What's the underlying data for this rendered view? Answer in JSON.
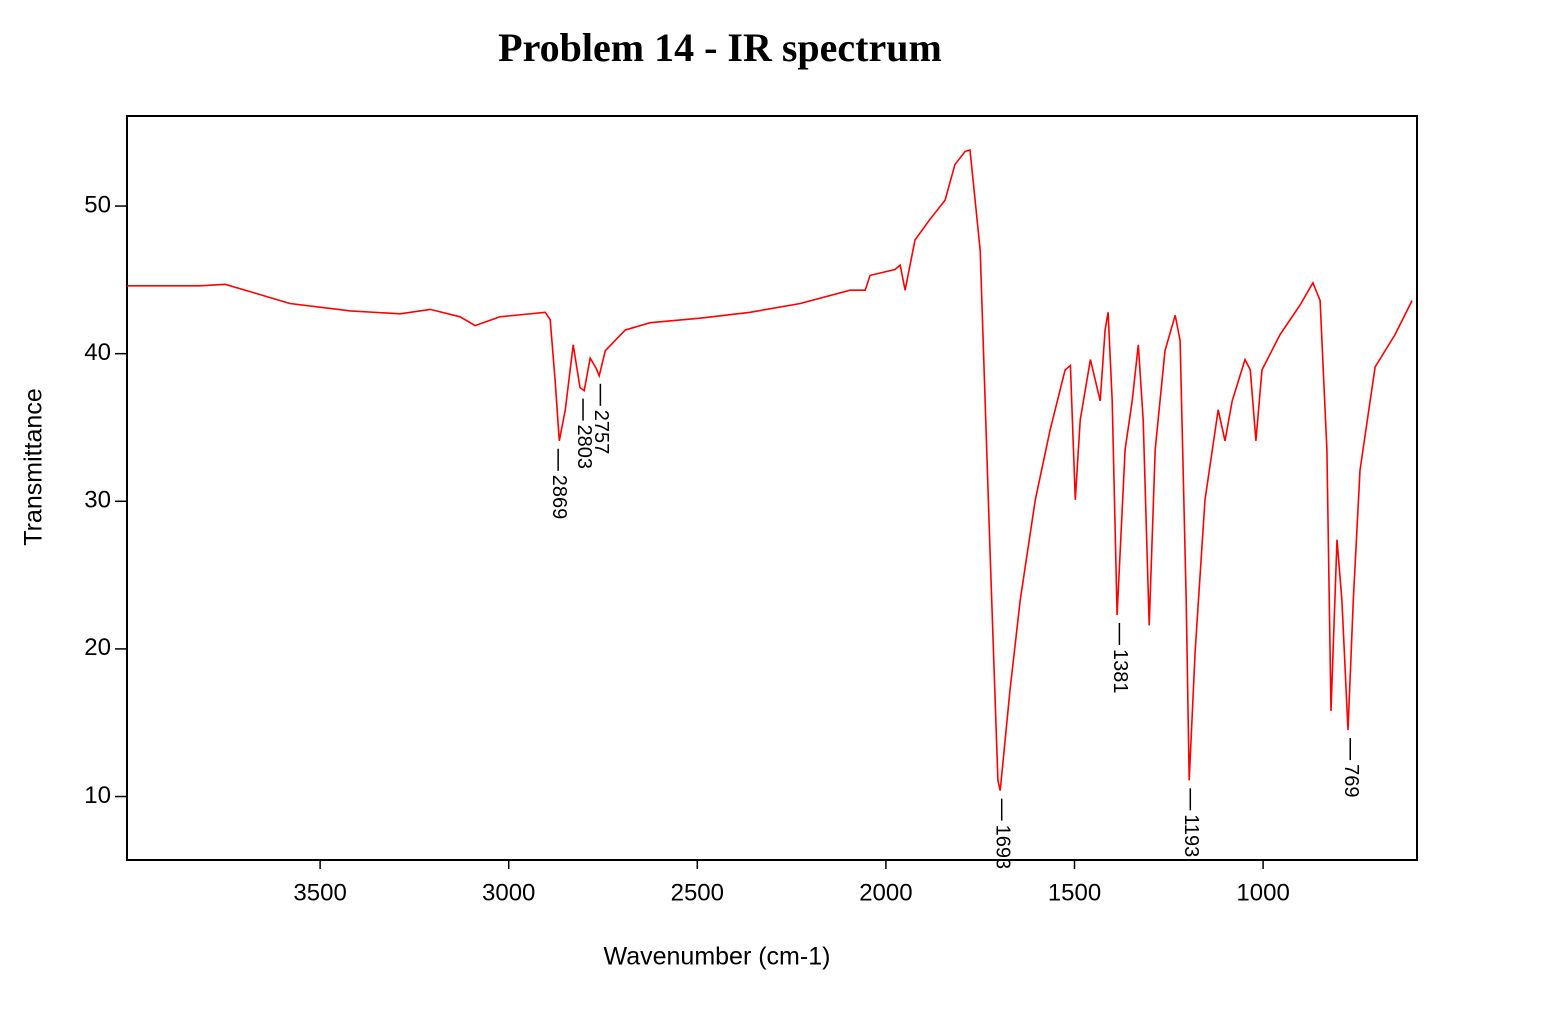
{
  "chart_data": {
    "type": "line",
    "title": "Problem 14 - IR spectrum",
    "xlabel": "Wavenumber (cm-1)",
    "ylabel": "Transmittance",
    "color": "#ff0000",
    "x": [
      4012,
      3818,
      3752,
      3659,
      3580,
      3420,
      3288,
      3208,
      3129,
      3089,
      3023,
      2903,
      2890,
      2877,
      2866,
      2850,
      2829,
      2811,
      2800,
      2784,
      2768,
      2760,
      2744,
      2691,
      2625,
      2493,
      2360,
      2227,
      2095,
      2055,
      2042,
      1976,
      1962,
      1949,
      1923,
      1883,
      1843,
      1817,
      1790,
      1777,
      1750,
      1724,
      1703,
      1697,
      1671,
      1644,
      1604,
      1565,
      1525,
      1511,
      1498,
      1485,
      1458,
      1445,
      1432,
      1419,
      1411,
      1400,
      1387,
      1366,
      1347,
      1331,
      1318,
      1302,
      1286,
      1260,
      1233,
      1220,
      1204,
      1196,
      1180,
      1154,
      1119,
      1101,
      1082,
      1048,
      1034,
      1019,
      1003,
      955,
      902,
      868,
      849,
      831,
      820,
      804,
      791,
      775,
      761,
      743,
      703,
      650,
      605
    ],
    "values": [
      44.6,
      44.6,
      44.7,
      44.0,
      43.4,
      42.9,
      42.7,
      43.0,
      42.5,
      41.9,
      42.5,
      42.8,
      42.3,
      38.2,
      34.1,
      36.2,
      40.6,
      37.7,
      37.5,
      39.7,
      39.0,
      38.5,
      40.2,
      41.6,
      42.1,
      42.4,
      42.8,
      43.4,
      44.3,
      44.3,
      45.3,
      45.7,
      46.0,
      44.3,
      47.7,
      49.1,
      50.4,
      52.8,
      53.7,
      53.8,
      47.0,
      26.7,
      11.1,
      10.4,
      17.2,
      23.3,
      30.1,
      34.8,
      38.9,
      39.2,
      30.1,
      35.5,
      39.6,
      38.2,
      36.8,
      41.6,
      42.8,
      36.8,
      22.3,
      33.5,
      36.8,
      40.6,
      35.5,
      21.6,
      33.5,
      40.2,
      42.6,
      40.9,
      23.3,
      11.1,
      19.9,
      30.1,
      36.2,
      34.1,
      36.8,
      39.6,
      38.9,
      34.1,
      38.9,
      41.3,
      43.3,
      44.8,
      43.6,
      33.5,
      15.8,
      27.4,
      23.3,
      14.5,
      23.3,
      32.1,
      39.1,
      41.3,
      43.6
    ],
    "xlim": [
      4012,
      592
    ],
    "ylim": [
      5.7,
      56.1
    ],
    "xticks": [
      3500,
      3000,
      2500,
      2000,
      1500,
      1000
    ],
    "yticks": [
      10,
      20,
      30,
      40,
      50
    ],
    "peaks": [
      {
        "x": 2869,
        "y": 34.1
      },
      {
        "x": 2803,
        "y": 37.5
      },
      {
        "x": 2757,
        "y": 38.5
      },
      {
        "x": 1693,
        "y": 10.4
      },
      {
        "x": 1381,
        "y": 22.3
      },
      {
        "x": 1193,
        "y": 11.1
      },
      {
        "x": 769,
        "y": 14.5
      }
    ],
    "peak_color": "#000000"
  }
}
